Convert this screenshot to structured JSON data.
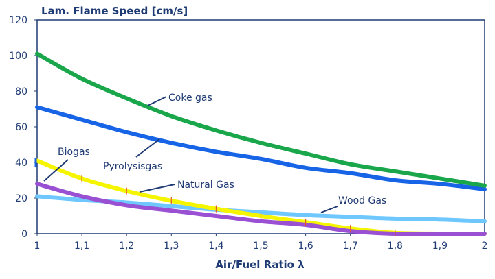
{
  "chart_data": {
    "type": "line",
    "ylabel": "Lam. Flame Speed [cm/s]",
    "xlabel": "Air/Fuel Ratio λ",
    "xlim": [
      1,
      2
    ],
    "ylim": [
      0,
      120
    ],
    "x_ticks": [
      "1",
      "1,1",
      "1,2",
      "1,3",
      "1,4",
      "1,5",
      "1,6",
      "1,7",
      "1,8",
      "1,9",
      "2"
    ],
    "y_ticks": [
      "0",
      "20",
      "40",
      "60",
      "80",
      "100",
      "120"
    ],
    "grid": false,
    "x": [
      1.0,
      1.1,
      1.2,
      1.3,
      1.4,
      1.5,
      1.6,
      1.7,
      1.8,
      1.9,
      2.0
    ],
    "series": [
      {
        "name": "Coke gas",
        "color": "#1aa64b",
        "values": [
          101,
          87,
          76,
          66,
          58,
          51,
          45,
          39,
          35,
          31,
          27
        ]
      },
      {
        "name": "Pyrolysisgas",
        "color": "#1764e6",
        "values": [
          71,
          64,
          57,
          51,
          46,
          42,
          37,
          34,
          30,
          28,
          25
        ]
      },
      {
        "name": "Natural Gas",
        "color": "#f5f500",
        "values": [
          41,
          31,
          24,
          18.5,
          14,
          10,
          6.5,
          3,
          0.5,
          0,
          0
        ]
      },
      {
        "name": "Wood Gas",
        "color": "#6ec8ff",
        "values": [
          21,
          19,
          17.5,
          15.5,
          13.5,
          12,
          10.5,
          9.5,
          8.5,
          8,
          7
        ]
      },
      {
        "name": "Biogas",
        "color": "#9a50d2",
        "values": [
          28,
          21,
          16,
          13,
          10,
          7,
          5,
          1.5,
          0,
          0,
          0
        ]
      }
    ],
    "annotations": [
      {
        "text": "Coke gas",
        "series": "Coke gas"
      },
      {
        "text": "Pyrolysisgas",
        "series": "Pyrolysisgas"
      },
      {
        "text": "Natural Gas",
        "series": "Natural Gas"
      },
      {
        "text": "Wood Gas",
        "series": "Wood Gas"
      },
      {
        "text": "Biogas",
        "series": "Biogas"
      }
    ]
  }
}
